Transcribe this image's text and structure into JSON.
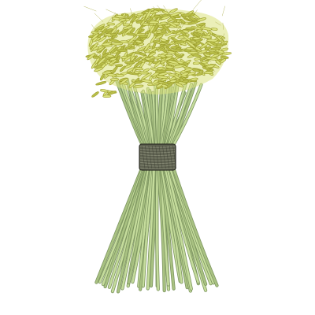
{
  "illustration": {
    "subject": "wheat-sheaf",
    "colors": {
      "background": "#ffffff",
      "stalk_fill": "#c5dc9c",
      "stalk_stroke": "#7d9560",
      "stalk_shadow": "#a9c282",
      "grain_fill": "#dbe27e",
      "grain_stroke": "#9d9f2e",
      "grain_dark": "#b9bf4a",
      "band_fill": "#5e6150",
      "band_stroke": "#2f3027",
      "band_thread": "#8a8d78"
    }
  }
}
